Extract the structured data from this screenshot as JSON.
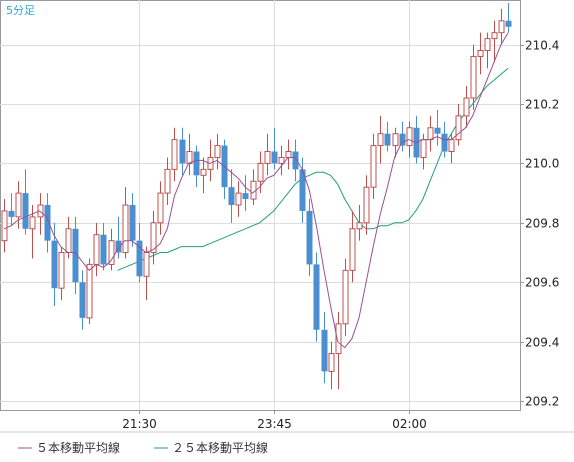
{
  "chart_data": {
    "type": "candlestick",
    "title": "5分足",
    "y_ticks": [
      209.2,
      209.4,
      209.6,
      209.8,
      210.0,
      210.2,
      210.4
    ],
    "ylim": [
      209.17,
      210.55
    ],
    "x_ticks": [
      "21:30",
      "23:45",
      "02:00"
    ],
    "grid": true,
    "legend_position": "bottom",
    "colors": {
      "up": "#c0504d",
      "down": "#4a8fd0",
      "ma5": "#9a5090",
      "ma25": "#20a070",
      "grid": "#dddddd",
      "title": "#2aa7cf"
    },
    "series": [
      {
        "name": "５本移動平均線",
        "key": "ma5"
      },
      {
        "name": "２５本移動平均線",
        "key": "ma25"
      }
    ],
    "ohlc": [
      [
        209.74,
        209.88,
        209.7,
        209.84
      ],
      [
        209.84,
        209.9,
        209.79,
        209.82
      ],
      [
        209.82,
        209.94,
        209.78,
        209.9
      ],
      [
        209.9,
        209.98,
        209.76,
        209.78
      ],
      [
        209.78,
        209.86,
        209.68,
        209.82
      ],
      [
        209.82,
        209.9,
        209.76,
        209.86
      ],
      [
        209.86,
        209.9,
        209.7,
        209.74
      ],
      [
        209.74,
        209.8,
        209.52,
        209.58
      ],
      [
        209.58,
        209.72,
        209.54,
        209.7
      ],
      [
        209.7,
        209.82,
        209.68,
        209.78
      ],
      [
        209.78,
        209.82,
        209.56,
        209.6
      ],
      [
        209.6,
        209.64,
        209.44,
        209.48
      ],
      [
        209.48,
        209.68,
        209.46,
        209.66
      ],
      [
        209.66,
        209.8,
        209.62,
        209.76
      ],
      [
        209.76,
        209.8,
        209.64,
        209.66
      ],
      [
        209.66,
        209.78,
        209.64,
        209.74
      ],
      [
        209.74,
        209.82,
        209.68,
        209.7
      ],
      [
        209.7,
        209.92,
        209.68,
        209.86
      ],
      [
        209.86,
        209.9,
        209.72,
        209.74
      ],
      [
        209.74,
        209.8,
        209.6,
        209.62
      ],
      [
        209.62,
        209.72,
        209.54,
        209.7
      ],
      [
        209.7,
        209.84,
        209.66,
        209.8
      ],
      [
        209.8,
        209.94,
        209.76,
        209.9
      ],
      [
        209.9,
        210.02,
        209.86,
        209.98
      ],
      [
        209.98,
        210.12,
        209.94,
        210.08
      ],
      [
        210.08,
        210.12,
        209.96,
        210.0
      ],
      [
        210.0,
        210.1,
        209.96,
        210.04
      ],
      [
        210.04,
        210.06,
        209.92,
        209.96
      ],
      [
        209.96,
        210.02,
        209.9,
        209.98
      ],
      [
        209.98,
        210.08,
        209.94,
        210.02
      ],
      [
        210.02,
        210.1,
        209.98,
        210.06
      ],
      [
        210.06,
        210.08,
        209.88,
        209.92
      ],
      [
        209.92,
        209.98,
        209.8,
        209.86
      ],
      [
        209.86,
        209.94,
        209.82,
        209.9
      ],
      [
        209.9,
        209.96,
        209.84,
        209.88
      ],
      [
        209.88,
        209.98,
        209.86,
        209.94
      ],
      [
        209.94,
        210.04,
        209.9,
        210.0
      ],
      [
        210.0,
        210.1,
        209.96,
        210.04
      ],
      [
        210.04,
        210.12,
        209.98,
        210.0
      ],
      [
        210.0,
        210.06,
        209.96,
        210.02
      ],
      [
        210.02,
        210.08,
        209.98,
        210.04
      ],
      [
        210.04,
        210.08,
        209.94,
        209.98
      ],
      [
        209.98,
        210.02,
        209.8,
        209.84
      ],
      [
        209.84,
        209.88,
        209.62,
        209.66
      ],
      [
        209.66,
        209.7,
        209.4,
        209.44
      ],
      [
        209.44,
        209.5,
        209.26,
        209.3
      ],
      [
        209.3,
        209.4,
        209.24,
        209.36
      ],
      [
        209.36,
        209.5,
        209.24,
        209.46
      ],
      [
        209.46,
        209.68,
        209.42,
        209.64
      ],
      [
        209.64,
        209.84,
        209.6,
        209.78
      ],
      [
        209.78,
        209.86,
        209.74,
        209.8
      ],
      [
        209.8,
        209.96,
        209.76,
        209.92
      ],
      [
        209.92,
        210.1,
        209.88,
        210.06
      ],
      [
        210.06,
        210.16,
        210.0,
        210.1
      ],
      [
        210.1,
        210.14,
        210.04,
        210.06
      ],
      [
        210.06,
        210.12,
        210.02,
        210.1
      ],
      [
        210.1,
        210.14,
        210.04,
        210.06
      ],
      [
        210.06,
        210.14,
        210.02,
        210.12
      ],
      [
        210.12,
        210.16,
        210.0,
        210.02
      ],
      [
        210.02,
        210.1,
        209.98,
        210.08
      ],
      [
        210.08,
        210.16,
        210.04,
        210.12
      ],
      [
        210.12,
        210.18,
        210.06,
        210.1
      ],
      [
        210.1,
        210.14,
        210.02,
        210.04
      ],
      [
        210.04,
        210.1,
        210.0,
        210.08
      ],
      [
        210.08,
        210.2,
        210.06,
        210.16
      ],
      [
        210.16,
        210.26,
        210.12,
        210.22
      ],
      [
        210.22,
        210.4,
        210.18,
        210.36
      ],
      [
        210.36,
        210.44,
        210.3,
        210.38
      ],
      [
        210.38,
        210.44,
        210.32,
        210.42
      ],
      [
        210.42,
        210.48,
        210.34,
        210.44
      ],
      [
        210.44,
        210.52,
        210.4,
        210.48
      ],
      [
        210.48,
        210.54,
        210.44,
        210.46
      ]
    ],
    "ma5": [
      209.78,
      209.79,
      209.81,
      209.82,
      209.83,
      209.84,
      209.82,
      209.76,
      209.72,
      209.7,
      209.7,
      209.67,
      209.64,
      209.66,
      209.65,
      209.67,
      209.71,
      209.74,
      209.74,
      209.72,
      209.7,
      209.71,
      209.73,
      209.78,
      209.89,
      209.95,
      210.0,
      210.01,
      210.01,
      210.0,
      210.01,
      209.99,
      209.97,
      209.95,
      209.92,
      209.9,
      209.92,
      209.95,
      209.96,
      209.99,
      210.02,
      210.02,
      209.98,
      209.91,
      209.79,
      209.65,
      209.52,
      209.4,
      209.38,
      209.41,
      209.48,
      209.6,
      209.72,
      209.83,
      209.92,
      210.02,
      210.07,
      210.08,
      210.07,
      210.08,
      210.08,
      210.09,
      210.08,
      210.08,
      210.1,
      210.12,
      210.16,
      210.22,
      210.28,
      210.34,
      210.4,
      210.44
    ],
    "ma25": [
      209.64,
      209.65,
      209.66,
      209.67,
      209.68,
      209.69,
      209.7,
      209.7,
      209.71,
      209.72,
      209.72,
      209.72,
      209.72,
      209.73,
      209.74,
      209.75,
      209.76,
      209.77,
      209.78,
      209.79,
      209.8,
      209.82,
      209.84,
      209.87,
      209.9,
      209.93,
      209.95,
      209.96,
      209.97,
      209.97,
      209.96,
      209.93,
      209.88,
      209.84,
      209.8,
      209.78,
      209.78,
      209.79,
      209.79,
      209.8,
      209.8,
      209.81,
      209.84,
      209.88,
      209.94,
      210.0,
      210.06,
      210.1,
      210.14,
      210.17,
      210.2,
      210.23,
      210.26,
      210.28,
      210.3,
      210.32
    ]
  }
}
